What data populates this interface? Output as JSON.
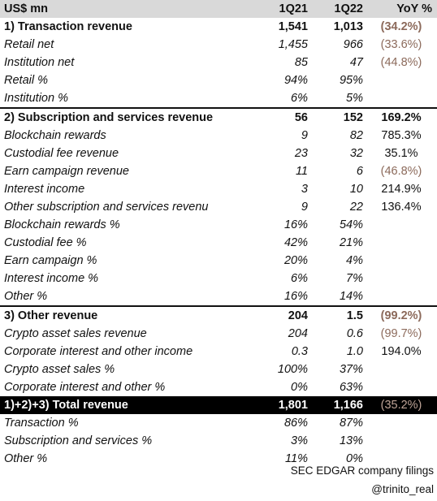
{
  "header": {
    "label": "US$ mn",
    "q1": "1Q21",
    "q2": "1Q22",
    "yoy": "YoY %"
  },
  "rows": [
    {
      "label": "1) Transaction revenue",
      "q1": "1,541",
      "q2": "1,013",
      "yoy": "(34.2%)"
    },
    {
      "label": "Retail net",
      "q1": "1,455",
      "q2": "966",
      "yoy": "(33.6%)"
    },
    {
      "label": "Institution net",
      "q1": "85",
      "q2": "47",
      "yoy": "(44.8%)"
    },
    {
      "label": "Retail %",
      "q1": "94%",
      "q2": "95%",
      "yoy": ""
    },
    {
      "label": "Institution %",
      "q1": "6%",
      "q2": "5%",
      "yoy": ""
    },
    {
      "label": "2) Subscription and services revenue",
      "q1": "56",
      "q2": "152",
      "yoy": "169.2%"
    },
    {
      "label": "Blockchain rewards",
      "q1": "9",
      "q2": "82",
      "yoy": "785.3%"
    },
    {
      "label": "Custodial fee revenue",
      "q1": "23",
      "q2": "32",
      "yoy": "35.1%"
    },
    {
      "label": "Earn campaign revenue",
      "q1": "11",
      "q2": "6",
      "yoy": "(46.8%)"
    },
    {
      "label": "Interest income",
      "q1": "3",
      "q2": "10",
      "yoy": "214.9%"
    },
    {
      "label": "Other subscription and services revenu",
      "q1": "9",
      "q2": "22",
      "yoy": "136.4%"
    },
    {
      "label": "Blockchain rewards %",
      "q1": "16%",
      "q2": "54%",
      "yoy": ""
    },
    {
      "label": "Custodial fee %",
      "q1": "42%",
      "q2": "21%",
      "yoy": ""
    },
    {
      "label": "Earn campaign %",
      "q1": "20%",
      "q2": "4%",
      "yoy": ""
    },
    {
      "label": "Interest income %",
      "q1": "6%",
      "q2": "7%",
      "yoy": ""
    },
    {
      "label": "Other %",
      "q1": "16%",
      "q2": "14%",
      "yoy": ""
    },
    {
      "label": "3) Other revenue",
      "q1": "204",
      "q2": "1.5",
      "yoy": "(99.2%)"
    },
    {
      "label": "Crypto asset sales revenue",
      "q1": "204",
      "q2": "0.6",
      "yoy": "(99.7%)"
    },
    {
      "label": "Corporate interest and other income",
      "q1": "0.3",
      "q2": "1.0",
      "yoy": "194.0%"
    },
    {
      "label": "Crypto asset sales %",
      "q1": "100%",
      "q2": "37%",
      "yoy": ""
    },
    {
      "label": "Corporate interest and other %",
      "q1": "0%",
      "q2": "63%",
      "yoy": ""
    },
    {
      "label": "1)+2)+3) Total revenue",
      "q1": "1,801",
      "q2": "1,166",
      "yoy": "(35.2%)"
    },
    {
      "label": "Transaction %",
      "q1": "86%",
      "q2": "87%",
      "yoy": ""
    },
    {
      "label": "Subscription and services %",
      "q1": "3%",
      "q2": "13%",
      "yoy": ""
    },
    {
      "label": "Other %",
      "q1": "11%",
      "q2": "0%",
      "yoy": ""
    }
  ],
  "footer": {
    "source": "SEC EDGAR company filings",
    "handle": "@trinito_real"
  },
  "colors": {
    "negative": "#8c6a5b",
    "header_bg": "#d9d9d9",
    "total_bg": "#000000"
  }
}
